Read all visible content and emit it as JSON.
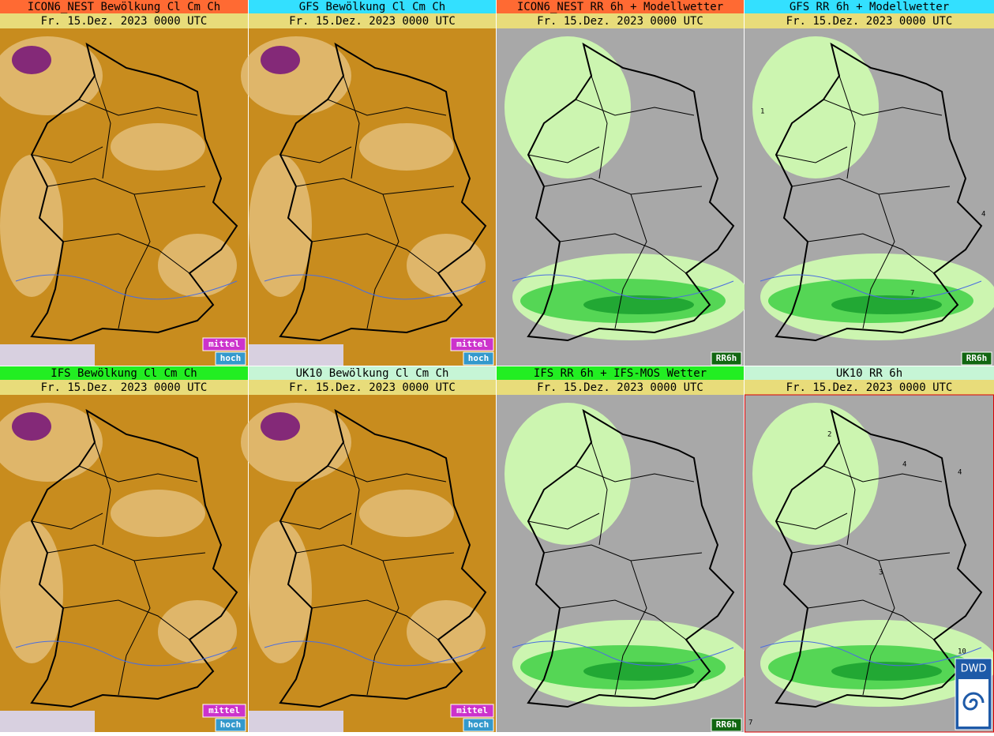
{
  "panels": [
    {
      "title": "ICON6_NEST Bewölkung Cl Cm Ch",
      "date": "Fr. 15.Dez. 2023 0000 UTC",
      "badges": [
        "mittel",
        "hoch"
      ]
    },
    {
      "title": "GFS Bewölkung Cl Cm Ch",
      "date": "Fr. 15.Dez. 2023 0000 UTC",
      "badges": [
        "mittel",
        "hoch"
      ]
    },
    {
      "title": "ICON6_NEST RR 6h + Modellwetter",
      "date": "Fr. 15.Dez. 2023 0000 UTC",
      "badges": [
        "RR6h"
      ]
    },
    {
      "title": "GFS RR 6h + Modellwetter",
      "date": "Fr. 15.Dez. 2023 0000 UTC",
      "badges": [
        "RR6h"
      ],
      "labels": [
        "1",
        "4",
        "7"
      ]
    },
    {
      "title": "IFS Bewölkung Cl Cm Ch",
      "date": "Fr. 15.Dez. 2023 0000 UTC",
      "badges": [
        "mittel",
        "hoch"
      ]
    },
    {
      "title": "UK10 Bewölkung Cl Cm Ch",
      "date": "Fr. 15.Dez. 2023 0000 UTC",
      "badges": [
        "mittel",
        "hoch"
      ]
    },
    {
      "title": "IFS RR 6h + IFS-MOS Wetter",
      "date": "Fr. 15.Dez. 2023 0000 UTC",
      "badges": [
        "RR6h"
      ]
    },
    {
      "title": "UK10 RR 6h",
      "date": "Fr. 15.Dez. 2023 0000 UTC",
      "badges": [],
      "labels": [
        "2",
        "4",
        "4",
        "3",
        "10",
        "7"
      ]
    }
  ],
  "logo": "DWD"
}
